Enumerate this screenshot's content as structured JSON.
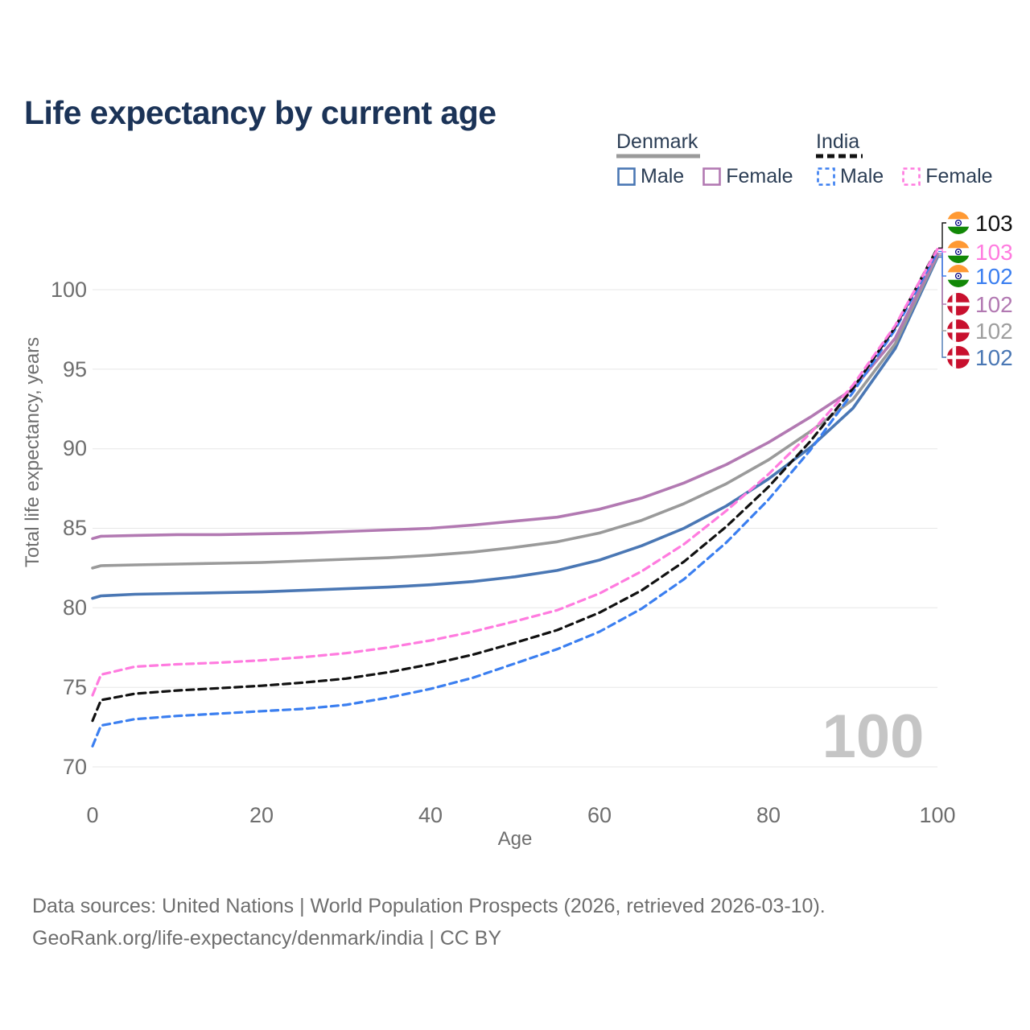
{
  "title": "Life expectancy by current age",
  "legend": {
    "groups": [
      {
        "country": "Denmark",
        "line_style": "solid",
        "underline_color": "#9a9a9a",
        "items": [
          {
            "label": "Male",
            "color": "#4a77b4"
          },
          {
            "label": "Female",
            "color": "#b279b2"
          }
        ]
      },
      {
        "country": "India",
        "line_style": "dashed",
        "underline_color": "#111111",
        "items": [
          {
            "label": "Male",
            "color": "#3b7ff0"
          },
          {
            "label": "Female",
            "color": "#ff7bdf"
          }
        ]
      }
    ]
  },
  "chart_data": {
    "type": "line",
    "title": "Life expectancy by current age",
    "xlabel": "Age",
    "ylabel": "Total life expectancy, years",
    "xticks": [
      0,
      20,
      40,
      60,
      80,
      100
    ],
    "yticks": [
      70,
      75,
      80,
      85,
      90,
      95,
      100
    ],
    "xlim": [
      0,
      100
    ],
    "ylim": [
      70,
      103.5
    ],
    "grid": true,
    "watermark_age": "100",
    "x": [
      0,
      1,
      5,
      10,
      15,
      20,
      25,
      30,
      35,
      40,
      45,
      50,
      55,
      60,
      65,
      70,
      75,
      80,
      85,
      90,
      95,
      100
    ],
    "series": [
      {
        "name": "Denmark Male",
        "country": "Denmark",
        "sex": "Male",
        "color": "#4a77b4",
        "dashed": false,
        "flag": "denmark-flag",
        "end_label": "102",
        "end_label_color": "#4a77b4",
        "label_row": 5,
        "values": [
          80.6,
          80.75,
          80.85,
          80.9,
          80.95,
          81.0,
          81.1,
          81.2,
          81.3,
          81.45,
          81.65,
          81.95,
          82.35,
          83.0,
          83.9,
          85.0,
          86.4,
          88.1,
          90.1,
          92.55,
          96.3,
          102.05
        ]
      },
      {
        "name": "Denmark Total",
        "country": "Denmark",
        "sex": "Both",
        "color": "#9a9a9a",
        "dashed": false,
        "flag": "denmark-flag",
        "end_label": "102",
        "end_label_color": "#9e9e9e",
        "label_row": 4,
        "values": [
          82.5,
          82.65,
          82.7,
          82.75,
          82.8,
          82.85,
          82.95,
          83.05,
          83.15,
          83.3,
          83.5,
          83.8,
          84.15,
          84.7,
          85.5,
          86.55,
          87.8,
          89.3,
          91.1,
          93.1,
          96.6,
          102.15
        ]
      },
      {
        "name": "Denmark Female",
        "country": "Denmark",
        "sex": "Female",
        "color": "#b279b2",
        "dashed": false,
        "flag": "denmark-flag",
        "end_label": "102",
        "end_label_color": "#b279b2",
        "label_row": 3,
        "values": [
          84.35,
          84.5,
          84.55,
          84.6,
          84.6,
          84.65,
          84.7,
          84.8,
          84.9,
          85.0,
          85.2,
          85.45,
          85.7,
          86.2,
          86.9,
          87.85,
          89.0,
          90.4,
          92.0,
          93.75,
          96.95,
          102.25
        ]
      },
      {
        "name": "India Male",
        "country": "India",
        "sex": "Male",
        "color": "#3b7ff0",
        "dashed": true,
        "flag": "india-flag",
        "end_label": "102",
        "end_label_color": "#3b7ff0",
        "label_row": 2,
        "values": [
          71.3,
          72.6,
          73.0,
          73.2,
          73.35,
          73.5,
          73.65,
          73.9,
          74.35,
          74.9,
          75.6,
          76.5,
          77.4,
          78.5,
          79.95,
          81.8,
          84.1,
          86.8,
          89.95,
          93.55,
          97.5,
          102.4
        ]
      },
      {
        "name": "India Total",
        "country": "India",
        "sex": "Both",
        "color": "#111111",
        "dashed": true,
        "flag": "india-flag",
        "end_label": "103",
        "end_label_color": "#111111",
        "label_row": 0,
        "values": [
          72.9,
          74.2,
          74.6,
          74.8,
          74.95,
          75.1,
          75.3,
          75.55,
          75.95,
          76.45,
          77.05,
          77.8,
          78.6,
          79.7,
          81.1,
          82.9,
          85.1,
          87.6,
          90.5,
          93.8,
          97.65,
          102.62
        ]
      },
      {
        "name": "India Female",
        "country": "India",
        "sex": "Female",
        "color": "#ff7bdf",
        "dashed": true,
        "flag": "india-flag",
        "end_label": "103",
        "end_label_color": "#ff7bdf",
        "label_row": 1,
        "values": [
          74.5,
          75.8,
          76.3,
          76.45,
          76.55,
          76.7,
          76.9,
          77.15,
          77.5,
          77.95,
          78.5,
          79.15,
          79.85,
          80.9,
          82.3,
          84.0,
          86.1,
          88.4,
          91.0,
          94.0,
          97.75,
          102.55
        ]
      }
    ]
  },
  "footer": {
    "line1": "Data sources: United Nations | World Population Prospects (2026, retrieved 2026-03-10).",
    "line2": "GeoRank.org/life-expectancy/denmark/india | CC BY"
  }
}
